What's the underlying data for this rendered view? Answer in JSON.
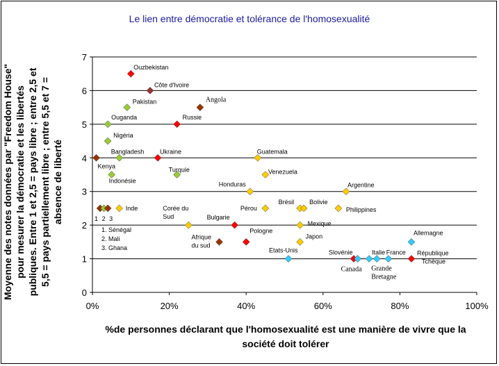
{
  "chart_data": {
    "type": "scatter",
    "title": "Le lien entre démocratie et tolérance de l'homosexualité",
    "xlabel": "%de personnes déclarant que l'homosexualité est une manière de vivre que la société doit tolérer",
    "ylabel": "Moyenne des notes données par \"Freedom House\" pour mesurer la démocratie et les libertés publiques. Entre 1 et 2,5 = pays libre ; entre 2,5 et 5,5 = pays partiellement libre ; entre 5,5 et 7 = absence de liberté",
    "xlim": [
      0,
      1
    ],
    "ylim": [
      0,
      7
    ],
    "x_ticks": [
      "0%",
      "20%",
      "40%",
      "60%",
      "80%",
      "100%"
    ],
    "y_ticks": [
      "0",
      "1",
      "2",
      "3",
      "4",
      "5",
      "6",
      "7"
    ],
    "grid": "horizontal",
    "points": [
      {
        "label": "Ouzbekistan",
        "x": 0.1,
        "y": 6.5,
        "color": "#ff0000"
      },
      {
        "label": "Côte d'Ivoire",
        "x": 0.15,
        "y": 6.0,
        "color": "#993333"
      },
      {
        "label": "Pakistan",
        "x": 0.09,
        "y": 5.5,
        "color": "#99cc33"
      },
      {
        "label": "Angola",
        "x": 0.28,
        "y": 5.5,
        "color": "#993300"
      },
      {
        "label": "Ouganda",
        "x": 0.04,
        "y": 5.0,
        "color": "#99cc33"
      },
      {
        "label": "Russie",
        "x": 0.22,
        "y": 5.0,
        "color": "#ff0000"
      },
      {
        "label": "Nigéria",
        "x": 0.04,
        "y": 4.5,
        "color": "#99cc33"
      },
      {
        "label": "Kenya",
        "x": 0.01,
        "y": 4.0,
        "color": "#993300"
      },
      {
        "label": "Bangladesh",
        "x": 0.07,
        "y": 4.0,
        "color": "#99cc33"
      },
      {
        "label": "Ukraine",
        "x": 0.17,
        "y": 4.0,
        "color": "#ff0000"
      },
      {
        "label": "Guatemala",
        "x": 0.43,
        "y": 4.0,
        "color": "#ffcc00"
      },
      {
        "label": "Indonésie",
        "x": 0.05,
        "y": 3.5,
        "color": "#99cc33"
      },
      {
        "label": "Turquie",
        "x": 0.22,
        "y": 3.5,
        "color": "#99cc33"
      },
      {
        "label": "Venezuela",
        "x": 0.45,
        "y": 3.5,
        "color": "#ffcc00"
      },
      {
        "label": "Honduras",
        "x": 0.41,
        "y": 3.0,
        "color": "#ffcc00"
      },
      {
        "label": "Argentine",
        "x": 0.66,
        "y": 3.0,
        "color": "#ffcc00"
      },
      {
        "label": "1",
        "x": 0.02,
        "y": 2.5,
        "color": "#993300"
      },
      {
        "label": "2",
        "x": 0.03,
        "y": 2.5,
        "color": "#99cc33"
      },
      {
        "label": "3",
        "x": 0.04,
        "y": 2.5,
        "color": "#993300"
      },
      {
        "label": "Inde",
        "x": 0.07,
        "y": 2.5,
        "color": "#ffcc00"
      },
      {
        "label": "Pérou",
        "x": 0.45,
        "y": 2.5,
        "color": "#ffcc00"
      },
      {
        "label": "Brésil",
        "x": 0.54,
        "y": 2.5,
        "color": "#ffcc00"
      },
      {
        "label": "Bolivie",
        "x": 0.55,
        "y": 2.5,
        "color": "#ffcc00"
      },
      {
        "label": "Philippines",
        "x": 0.64,
        "y": 2.5,
        "color": "#ffcc00"
      },
      {
        "label": "Corée du Sud",
        "x": 0.25,
        "y": 2.0,
        "color": "#ffcc00"
      },
      {
        "label": "Bulgarie",
        "x": 0.37,
        "y": 2.0,
        "color": "#ff0000"
      },
      {
        "label": "Mexique",
        "x": 0.54,
        "y": 2.0,
        "color": "#ffcc00"
      },
      {
        "label": "Afrique du sud",
        "x": 0.33,
        "y": 1.5,
        "color": "#993300"
      },
      {
        "label": "Pologne",
        "x": 0.4,
        "y": 1.5,
        "color": "#ff0000"
      },
      {
        "label": "Japon",
        "x": 0.54,
        "y": 1.5,
        "color": "#ffcc00"
      },
      {
        "label": "Allemagne",
        "x": 0.83,
        "y": 1.5,
        "color": "#33ccff"
      },
      {
        "label": "Etats-Unis",
        "x": 0.51,
        "y": 1.0,
        "color": "#33ccff"
      },
      {
        "label": "Slovénie",
        "x": 0.68,
        "y": 1.0,
        "color": "#ff0000"
      },
      {
        "label": "Canada",
        "x": 0.69,
        "y": 1.0,
        "color": "#33ccff"
      },
      {
        "label": "Italie",
        "x": 0.72,
        "y": 1.0,
        "color": "#33ccff"
      },
      {
        "label": "Grande Bretagne",
        "x": 0.74,
        "y": 1.0,
        "color": "#33ccff"
      },
      {
        "label": "France",
        "x": 0.77,
        "y": 1.0,
        "color": "#33ccff"
      },
      {
        "label": "République Tchèque",
        "x": 0.83,
        "y": 1.0,
        "color": "#ff0000"
      }
    ],
    "legend_notes": [
      "1. Sénégal",
      "2. Mali",
      "3. Ghana"
    ]
  }
}
